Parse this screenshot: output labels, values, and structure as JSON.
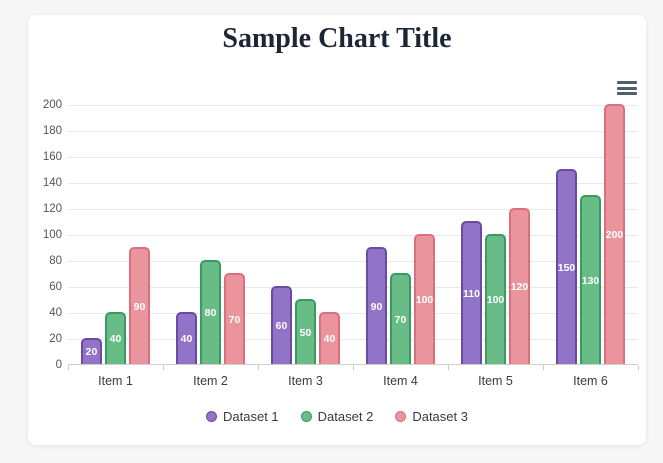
{
  "header": {
    "title": "Sample Chart Title"
  },
  "toolbar": {
    "menu_icon": "hamburger-menu-icon"
  },
  "colors": {
    "page_background": "#f6f6f6",
    "card_background": "#ffffff",
    "title_text": "#1c2637",
    "gridline": "#e9e9e9",
    "axis_baseline": "#cfcfcf",
    "axis_label_text": "#555555",
    "value_label_text": "#ffffff"
  },
  "chart_data": {
    "type": "bar",
    "title": "Sample Chart Title",
    "categories": [
      "Item 1",
      "Item 2",
      "Item 3",
      "Item 4",
      "Item 5",
      "Item 6"
    ],
    "series": [
      {
        "name": "Dataset 1",
        "values": [
          20,
          40,
          60,
          90,
          110,
          150
        ],
        "fill": "#9173c8",
        "border": "#6b4ba1"
      },
      {
        "name": "Dataset 2",
        "values": [
          40,
          80,
          50,
          70,
          100,
          130
        ],
        "fill": "#68bc86",
        "border": "#3a9a63"
      },
      {
        "name": "Dataset 3",
        "values": [
          90,
          70,
          40,
          100,
          120,
          200
        ],
        "fill": "#ea949e",
        "border": "#dc6f7e"
      }
    ],
    "xlabel": "",
    "ylabel": "",
    "ylim": [
      0,
      200
    ],
    "ytick_step": 20,
    "grid": true,
    "legend_position": "bottom",
    "value_labels": "inside-center-white"
  }
}
